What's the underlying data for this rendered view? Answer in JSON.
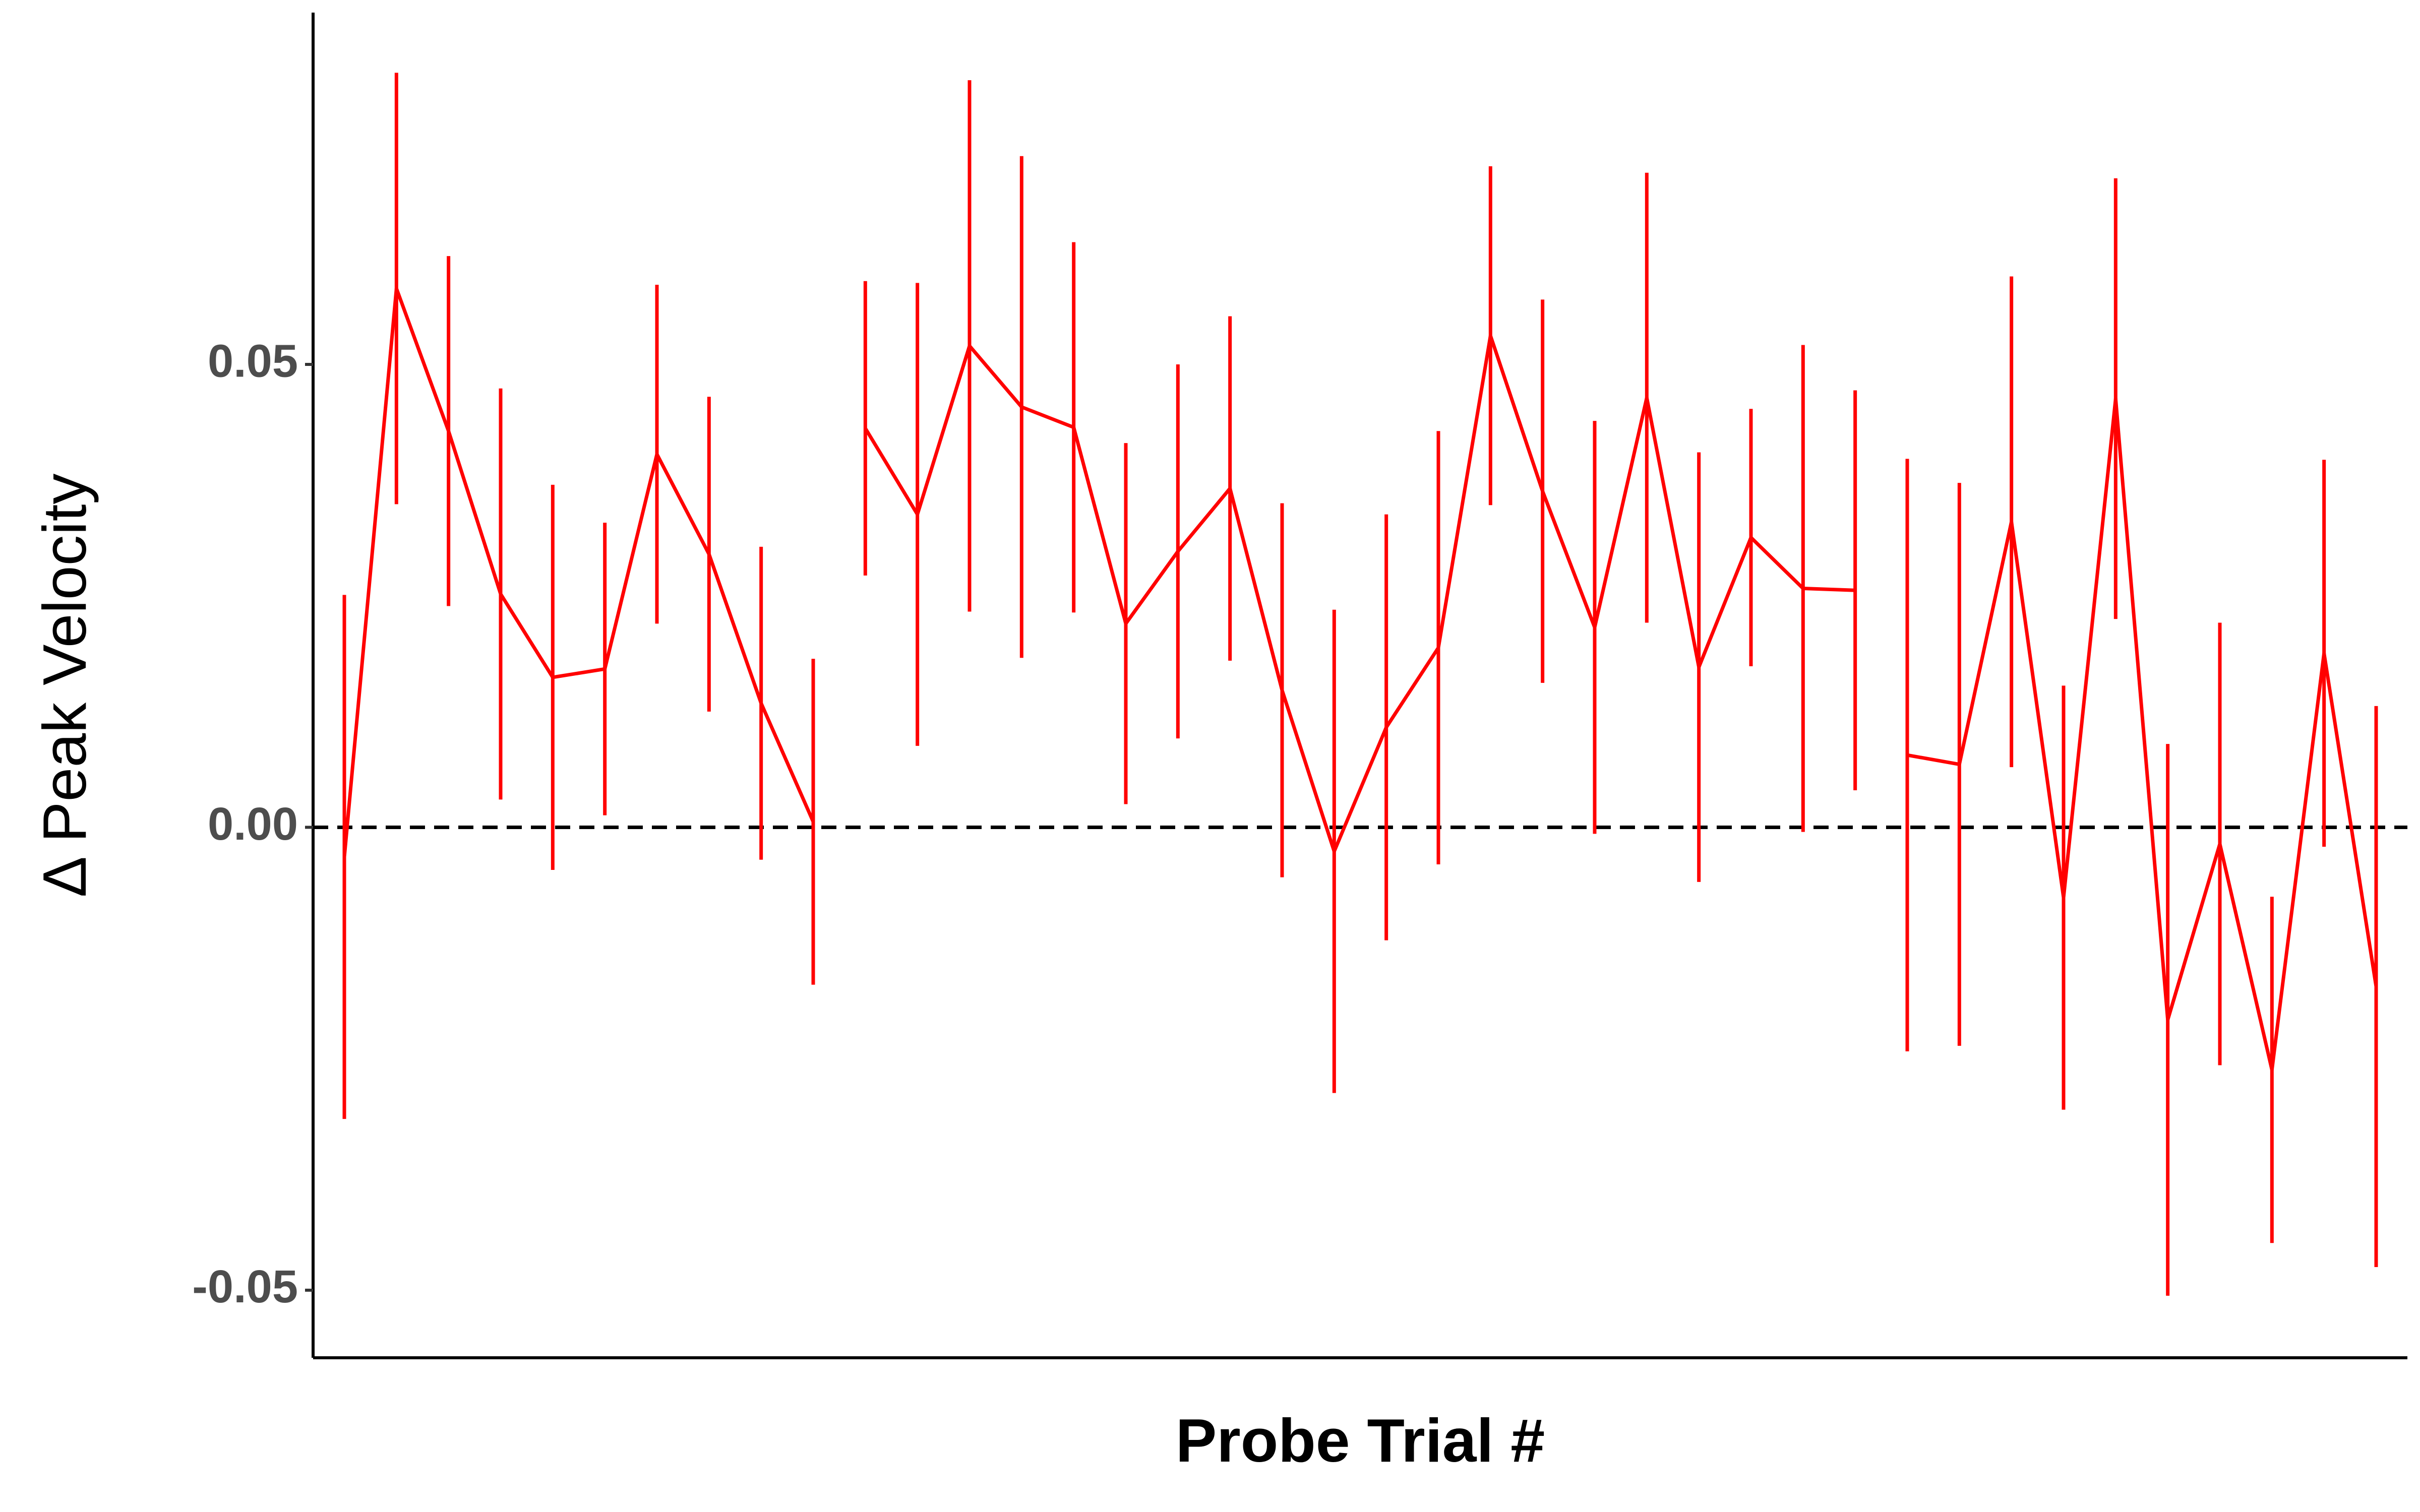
{
  "chart_data": {
    "type": "line",
    "x_label": "Probe Trial #",
    "y_label": "Δ Peak Velocity",
    "xlim": [
      0.4,
      40.6
    ],
    "ylim": [
      -0.0573,
      0.088
    ],
    "yticks": [
      -0.05,
      {
        "value": 0,
        "label": "0.00"
      },
      0.05
    ],
    "hline": 0,
    "grid": false,
    "series": [
      {
        "color": "#ff0000",
        "x": [
          1,
          2,
          3,
          4,
          5,
          6,
          7,
          8,
          9,
          10
        ],
        "values": [
          -0.0032,
          0.0582,
          0.0428,
          0.0252,
          0.0162,
          0.0171,
          0.0403,
          0.0295,
          0.0134,
          0.0006
        ],
        "errors": [
          0.0283,
          0.0233,
          0.0189,
          0.0222,
          0.0208,
          0.0158,
          0.0183,
          0.017,
          0.0169,
          0.0176
        ]
      },
      {
        "color": "#ff0000",
        "x": [
          11,
          12,
          13,
          14,
          15,
          16,
          17,
          18,
          19,
          20,
          21,
          22,
          23,
          24,
          25,
          26,
          27,
          28,
          29,
          30
        ],
        "values": [
          0.0431,
          0.0338,
          0.052,
          0.0454,
          0.0432,
          0.022,
          0.0298,
          0.0366,
          0.0148,
          -0.0026,
          0.0108,
          0.0194,
          0.0531,
          0.0363,
          0.0216,
          0.0464,
          0.0173,
          0.0313,
          0.0258,
          0.0256
        ],
        "errors": [
          0.0159,
          0.025,
          0.0287,
          0.0271,
          0.02,
          0.0195,
          0.0202,
          0.0186,
          0.0202,
          0.0261,
          0.023,
          0.0234,
          0.0183,
          0.0207,
          0.0223,
          0.0243,
          0.0232,
          0.0139,
          0.0263,
          0.0216
        ]
      },
      {
        "color": "#ff0000",
        "x": [
          31,
          32,
          33,
          34,
          35,
          36,
          37,
          38,
          39,
          40
        ],
        "values": [
          0.0078,
          0.0068,
          0.033,
          -0.0076,
          0.0463,
          -0.0208,
          -0.0018,
          -0.0262,
          0.0188,
          -0.0172
        ],
        "errors": [
          0.032,
          0.0304,
          0.0265,
          0.0229,
          0.0238,
          0.0298,
          0.0239,
          0.0187,
          0.0209,
          0.0303
        ]
      }
    ]
  }
}
